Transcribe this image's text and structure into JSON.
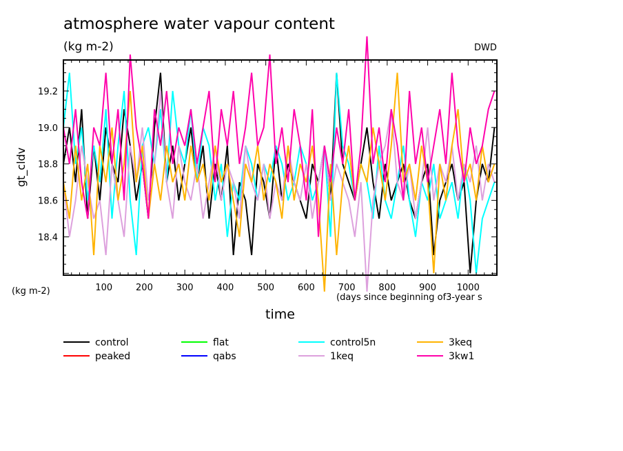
{
  "chart_data": {
    "type": "line",
    "title": "atmosphere water vapour content",
    "subtitle": "(kg m-2)",
    "source_label": "DWD",
    "ylabel": "gt_cldv",
    "yunits": "(kg m-2)",
    "xlabel": "time",
    "xunits": "(days since beginning of3-year s",
    "xlim": [
      0,
      1071
    ],
    "ylim": [
      18.19,
      19.37
    ],
    "xticks": [
      100,
      200,
      300,
      400,
      500,
      600,
      700,
      800,
      900,
      1000
    ],
    "yticks": [
      "18.4",
      "18.6",
      "18.8",
      "19.0",
      "19.2"
    ],
    "x_step": 15,
    "series": [
      {
        "name": "control",
        "color": "#000000",
        "values": [
          18.8,
          19.0,
          18.7,
          19.1,
          18.5,
          18.9,
          18.6,
          19.0,
          18.8,
          18.7,
          19.1,
          18.9,
          18.6,
          18.8,
          18.5,
          19.0,
          19.3,
          18.7,
          18.9,
          18.6,
          18.8,
          19.0,
          18.7,
          18.9,
          18.5,
          18.8,
          18.6,
          18.9,
          18.3,
          18.7,
          18.6,
          18.3,
          18.8,
          18.7,
          18.5,
          18.9,
          18.6,
          18.8,
          18.7,
          18.6,
          18.5,
          18.8,
          18.7,
          18.9,
          18.6,
          19.3,
          18.8,
          18.7,
          18.6,
          18.8,
          19.0,
          18.7,
          18.5,
          18.8,
          18.6,
          18.7,
          18.8,
          18.6,
          18.5,
          18.7,
          18.8,
          18.3,
          18.6,
          18.7,
          18.8,
          18.6,
          18.7,
          18.2,
          18.6,
          18.8,
          18.7,
          19.0
        ]
      },
      {
        "name": "peaked",
        "color": "#ff0000",
        "values": []
      },
      {
        "name": "flat",
        "color": "#00ff00",
        "values": []
      },
      {
        "name": "qabs",
        "color": "#0000ff",
        "values": []
      },
      {
        "name": "control5n",
        "color": "#00ffff",
        "values": [
          19.0,
          19.3,
          18.8,
          19.0,
          18.6,
          18.9,
          18.7,
          19.1,
          18.5,
          18.9,
          19.2,
          18.6,
          18.3,
          18.9,
          19.0,
          18.8,
          19.1,
          18.7,
          19.2,
          18.9,
          18.8,
          19.1,
          18.7,
          19.0,
          18.9,
          18.6,
          18.8,
          18.4,
          18.7,
          18.6,
          18.9,
          18.8,
          18.6,
          18.8,
          18.7,
          18.9,
          18.8,
          18.6,
          18.7,
          18.9,
          18.8,
          18.6,
          18.7,
          18.9,
          18.4,
          19.3,
          18.9,
          18.8,
          18.6,
          18.8,
          18.7,
          18.5,
          18.9,
          18.6,
          18.5,
          18.7,
          18.9,
          18.6,
          18.4,
          18.7,
          18.6,
          18.8,
          18.5,
          18.6,
          18.7,
          18.5,
          18.8,
          18.6,
          18.2,
          18.5,
          18.6,
          18.7
        ]
      },
      {
        "name": "1keq",
        "color": "#dda0dd",
        "values": [
          18.7,
          18.4,
          18.6,
          18.9,
          18.7,
          18.5,
          18.6,
          18.3,
          18.8,
          18.6,
          18.4,
          18.9,
          18.7,
          19.0,
          18.6,
          18.8,
          19.2,
          18.7,
          18.5,
          18.9,
          18.7,
          18.6,
          18.8,
          18.5,
          18.7,
          18.9,
          18.6,
          18.8,
          18.7,
          18.5,
          18.9,
          18.7,
          18.6,
          18.8,
          18.5,
          18.7,
          18.6,
          18.9,
          18.7,
          18.6,
          18.8,
          18.5,
          18.7,
          18.9,
          18.6,
          18.8,
          18.7,
          18.6,
          18.4,
          18.7,
          18.1,
          18.6,
          18.8,
          18.9,
          19.1,
          18.7,
          18.6,
          18.8,
          18.5,
          18.7,
          19.0,
          18.6,
          18.8,
          18.7,
          18.9,
          18.6,
          18.8,
          18.7,
          18.9,
          18.6,
          18.8,
          18.7
        ]
      },
      {
        "name": "3keq",
        "color": "#ffb300",
        "values": [
          18.7,
          18.5,
          18.9,
          18.6,
          18.8,
          18.3,
          18.9,
          18.7,
          19.0,
          18.6,
          18.8,
          19.2,
          18.7,
          18.9,
          18.5,
          18.8,
          18.6,
          18.9,
          18.7,
          18.8,
          18.6,
          18.9,
          18.7,
          18.8,
          18.6,
          18.9,
          18.7,
          18.8,
          18.6,
          18.4,
          18.8,
          18.7,
          18.9,
          18.6,
          18.8,
          18.7,
          18.5,
          18.9,
          18.6,
          18.8,
          18.7,
          18.9,
          18.6,
          18.1,
          18.8,
          18.3,
          18.7,
          18.9,
          18.6,
          18.8,
          18.7,
          19.0,
          18.8,
          18.6,
          18.9,
          19.3,
          18.7,
          18.8,
          18.6,
          18.9,
          18.7,
          18.2,
          18.8,
          18.6,
          18.9,
          19.1,
          18.7,
          18.8,
          18.6,
          18.9,
          18.7,
          18.8
        ]
      },
      {
        "name": "3kw1",
        "color": "#ff00aa",
        "values": [
          19.0,
          18.8,
          19.1,
          18.7,
          18.5,
          19.0,
          18.9,
          19.3,
          18.8,
          19.1,
          18.6,
          19.4,
          19.0,
          18.8,
          18.5,
          19.1,
          18.9,
          19.2,
          18.8,
          19.0,
          18.9,
          19.1,
          18.8,
          19.0,
          19.2,
          18.7,
          19.1,
          18.9,
          19.2,
          18.8,
          19.0,
          19.3,
          18.9,
          19.0,
          19.4,
          18.8,
          19.0,
          18.7,
          19.1,
          18.9,
          18.6,
          19.1,
          18.4,
          18.9,
          18.7,
          19.0,
          18.8,
          19.1,
          18.6,
          18.9,
          19.5,
          18.8,
          19.0,
          18.7,
          19.1,
          18.9,
          18.6,
          19.2,
          18.8,
          19.0,
          18.7,
          18.9,
          19.1,
          18.8,
          19.3,
          18.9,
          18.7,
          19.0,
          18.8,
          18.9,
          19.1,
          19.2
        ]
      }
    ],
    "legend": {
      "placement": "bottom",
      "order": [
        "control",
        "flat",
        "control5n",
        "3keq",
        "peaked",
        "qabs",
        "1keq",
        "3kw1"
      ]
    }
  }
}
